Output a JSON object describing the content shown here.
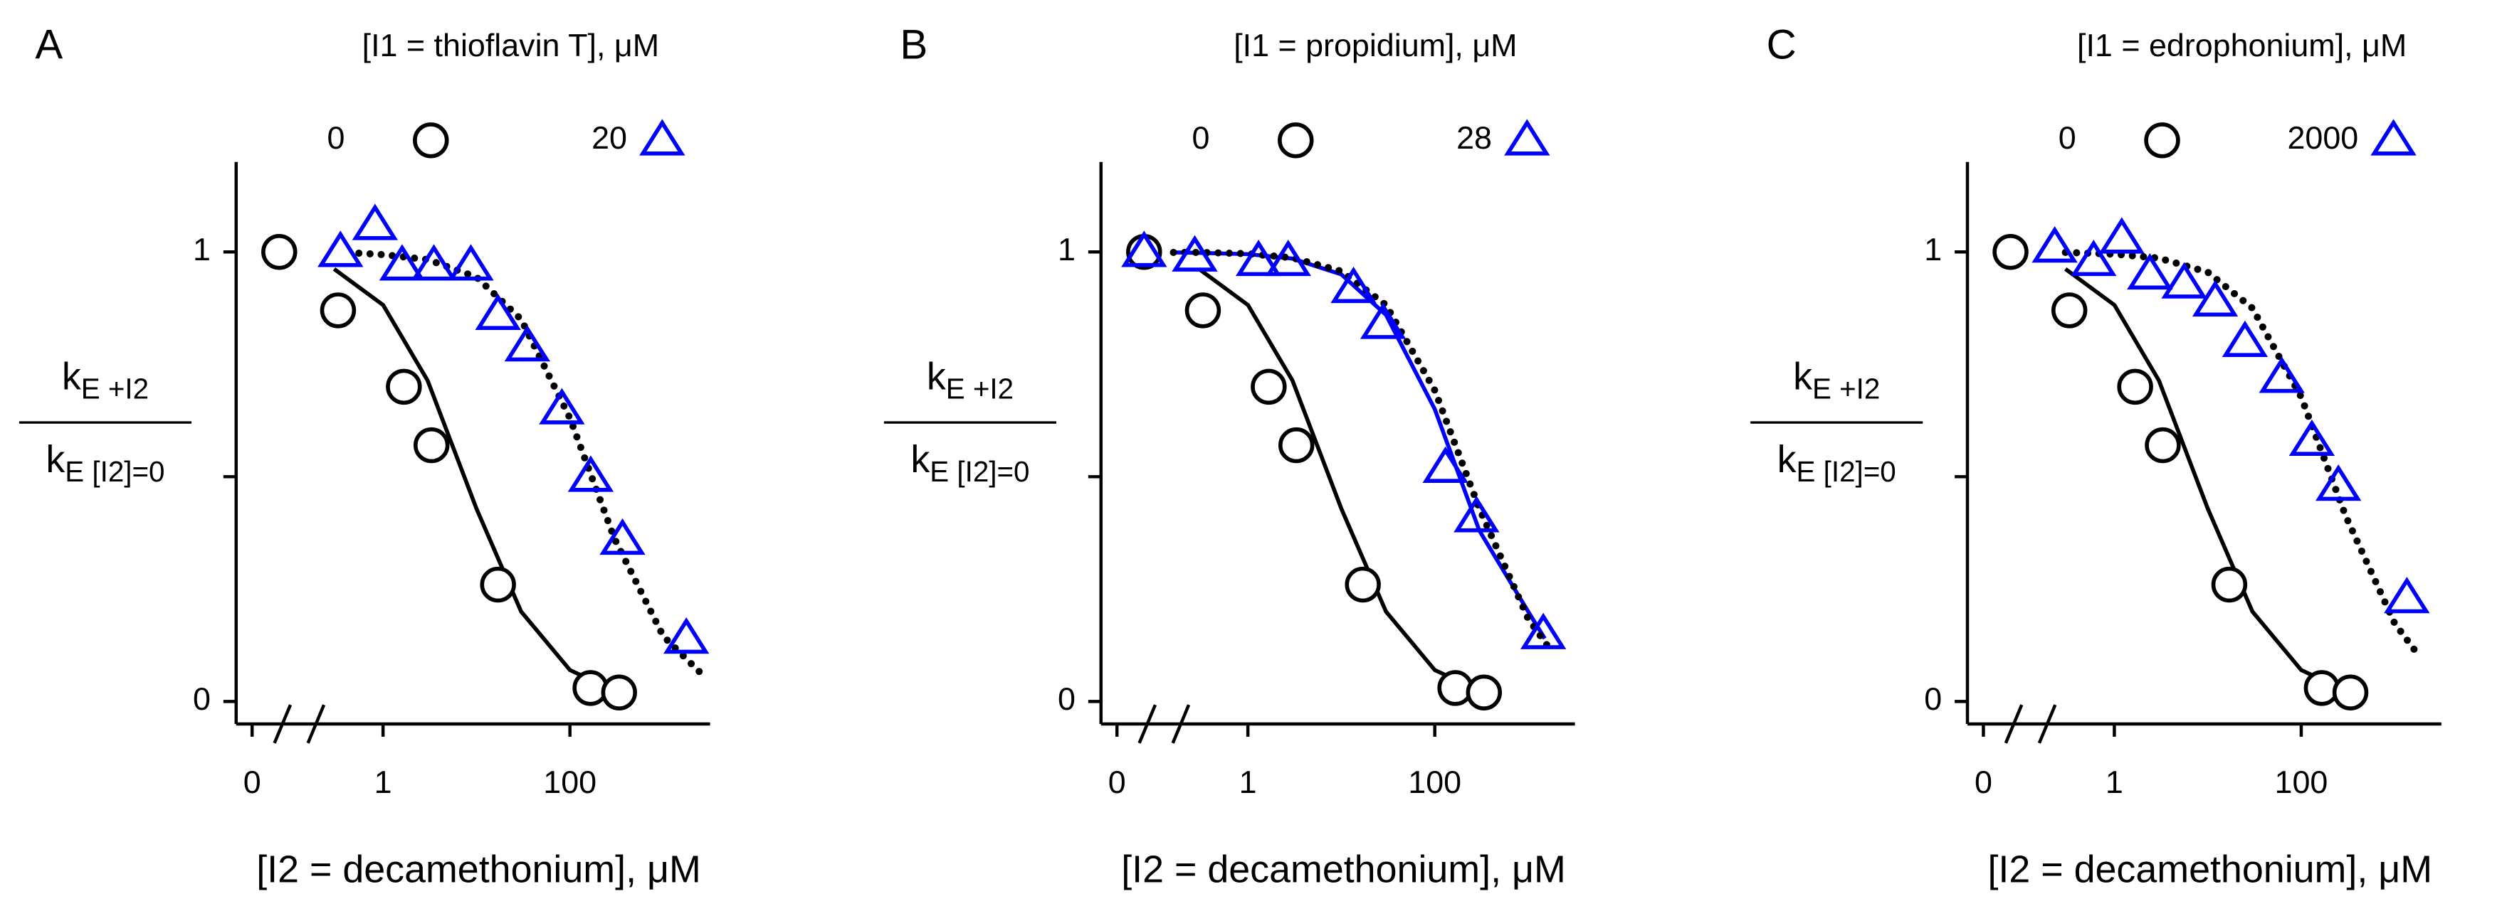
{
  "chart_data": [
    {
      "type": "scatter",
      "panel_label": "A",
      "legend_title": "[I1 = thioflavin T], μM",
      "xlabel": "[I2 = decamethonium], μM",
      "ylabel_numerator": {
        "main": "k",
        "sub": "E +I2"
      },
      "ylabel_denominator": {
        "main": "k",
        "sub": "E [I2]=0"
      },
      "xscale": "log",
      "xlim": [
        0.25,
        3160
      ],
      "xticks": [
        {
          "value": 0,
          "label": "0"
        },
        1,
        100
      ],
      "ylim": [
        -0.05,
        1.2
      ],
      "yticks": [
        0,
        1
      ],
      "yminorticks": [
        0.5
      ],
      "series": [
        {
          "name": "0",
          "marker": "circle",
          "color": "#000000",
          "x": [
            0,
            0.33,
            1.67,
            3.3,
            17,
            166,
            336
          ],
          "values": [
            1,
            0.87,
            0.7,
            0.57,
            0.26,
            0.03,
            0.02
          ]
        },
        {
          "name": "20",
          "marker": "triangle",
          "color": "#0000ff",
          "x": [
            0.35,
            0.82,
            1.6,
            3.5,
            8.7,
            17,
            35,
            82,
            167,
            365,
            1760
          ],
          "values": [
            1,
            1.06,
            0.97,
            0.97,
            0.97,
            0.86,
            0.79,
            0.65,
            0.5,
            0.36,
            0.14
          ]
        }
      ],
      "fit_curves": [
        {
          "style": "solid",
          "color": "#000000",
          "x": [
            0.3,
            1,
            3,
            10,
            30,
            100,
            300,
            500
          ],
          "values": [
            0.962,
            0.882,
            0.714,
            0.429,
            0.2,
            0.07,
            0.024,
            0.015
          ]
        },
        {
          "style": "dotted",
          "color": "#000000",
          "x": [
            0.55,
            1,
            3,
            10,
            30,
            100,
            300,
            1000,
            2500
          ],
          "values": [
            0.997,
            0.994,
            0.983,
            0.944,
            0.85,
            0.63,
            0.362,
            0.145,
            0.064
          ]
        }
      ]
    },
    {
      "type": "scatter",
      "panel_label": "B",
      "legend_title": "[I1 = propidium], μM",
      "xlabel": "[I2 = decamethonium], μM",
      "ylabel_numerator": {
        "main": "k",
        "sub": "E +I2"
      },
      "ylabel_denominator": {
        "main": "k",
        "sub": "E [I2]=0"
      },
      "xscale": "log",
      "xlim": [
        0.25,
        3160
      ],
      "xticks": [
        {
          "value": 0,
          "label": "0"
        },
        1,
        100
      ],
      "ylim": [
        -0.05,
        1.2
      ],
      "yticks": [
        0,
        1
      ],
      "yminorticks": [
        0.5
      ],
      "series": [
        {
          "name": "0",
          "marker": "circle",
          "color": "#000000",
          "x": [
            0,
            0.33,
            1.67,
            3.3,
            17,
            166,
            336
          ],
          "values": [
            1,
            0.87,
            0.7,
            0.57,
            0.26,
            0.03,
            0.02
          ]
        },
        {
          "name": "28",
          "marker": "triangle",
          "color": "#0000ff",
          "x": [
            0,
            0.27,
            1.3,
            2.7,
            13.5,
            28,
            130,
            280,
            1450
          ],
          "values": [
            1,
            0.99,
            0.98,
            0.98,
            0.92,
            0.84,
            0.52,
            0.41,
            0.15
          ]
        }
      ],
      "fit_curves": [
        {
          "style": "solid",
          "color": "#000000",
          "x": [
            0.3,
            1,
            3,
            10,
            30,
            100,
            300,
            500
          ],
          "values": [
            0.962,
            0.882,
            0.714,
            0.429,
            0.2,
            0.07,
            0.024,
            0.015
          ]
        },
        {
          "style": "solid",
          "color": "#0000ff",
          "x": [
            0.16,
            0.3,
            1,
            3,
            10,
            30,
            100,
            300,
            1000,
            1500
          ],
          "values": [
            0.999,
            0.998,
            0.995,
            0.985,
            0.95,
            0.86,
            0.65,
            0.38,
            0.2,
            0.14
          ]
        },
        {
          "style": "dotted",
          "color": "#000000",
          "x": [
            0.16,
            0.3,
            1,
            3,
            10,
            30,
            100,
            300,
            1000,
            1700
          ],
          "values": [
            0.999,
            0.999,
            0.996,
            0.987,
            0.957,
            0.882,
            0.692,
            0.429,
            0.184,
            0.117
          ]
        }
      ]
    },
    {
      "type": "scatter",
      "panel_label": "C",
      "legend_title": "[I1 = edrophonium], μM",
      "xlabel": "[I2 = decamethonium], μM",
      "ylabel_numerator": {
        "main": "k",
        "sub": "E +I2"
      },
      "ylabel_denominator": {
        "main": "k",
        "sub": "E [I2]=0"
      },
      "xscale": "log",
      "xlim": [
        0.25,
        3160
      ],
      "xticks": [
        {
          "value": 0,
          "label": "0"
        },
        1,
        100
      ],
      "ylim": [
        -0.05,
        1.2
      ],
      "yticks": [
        0,
        1
      ],
      "yminorticks": [
        0.5
      ],
      "series": [
        {
          "name": "0",
          "marker": "circle",
          "color": "#000000",
          "x": [
            0,
            0.33,
            1.67,
            3.3,
            17,
            166,
            336
          ],
          "values": [
            1,
            0.87,
            0.7,
            0.57,
            0.26,
            0.03,
            0.02
          ]
        },
        {
          "name": "2000",
          "marker": "triangle",
          "color": "#0000ff",
          "x": [
            0.23,
            0.6,
            1.2,
            2.4,
            5.6,
            12,
            25,
            62,
            130,
            250,
            1350
          ],
          "values": [
            1.01,
            0.98,
            1.03,
            0.95,
            0.93,
            0.89,
            0.8,
            0.72,
            0.58,
            0.48,
            0.23
          ]
        }
      ],
      "fit_curves": [
        {
          "style": "solid",
          "color": "#000000",
          "x": [
            0.3,
            1,
            3,
            10,
            30,
            100,
            300,
            500
          ],
          "values": [
            0.962,
            0.882,
            0.714,
            0.429,
            0.2,
            0.07,
            0.024,
            0.015
          ]
        },
        {
          "style": "dotted",
          "color": "#000000",
          "x": [
            0.3,
            1,
            3,
            10,
            30,
            100,
            300,
            1000,
            1700
          ],
          "values": [
            0.999,
            0.995,
            0.986,
            0.955,
            0.875,
            0.677,
            0.412,
            0.174,
            0.11
          ]
        }
      ]
    }
  ]
}
